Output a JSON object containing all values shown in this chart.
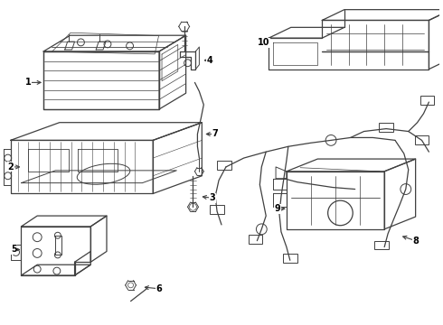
{
  "background_color": "#ffffff",
  "line_color": "#404040",
  "figsize": [
    4.9,
    3.6
  ],
  "dpi": 100
}
